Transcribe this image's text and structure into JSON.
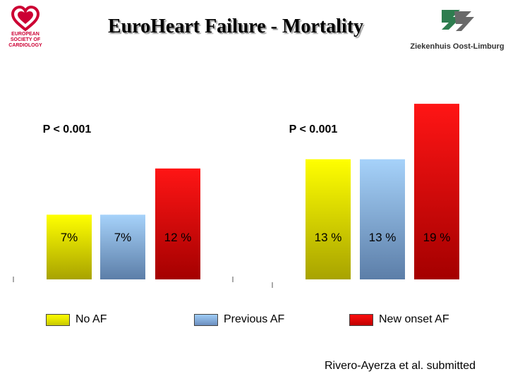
{
  "title": "Euro​Heart Failure - Mortality",
  "logos": {
    "left_lines": [
      "EUROPEAN",
      "SOCIETY OF",
      "CARDIOLOGY"
    ],
    "right_text": "Ziekenhuis Oost-Limburg"
  },
  "colors": {
    "no_af": "#ffff00",
    "previous_af": "#9fcdf7",
    "new_onset_af": "#ff1010"
  },
  "legend": [
    "No AF",
    "Previous AF",
    "New onset AF"
  ],
  "citation": "Rivero-Ayerza et al. submitted",
  "chart_data": {
    "type": "bar",
    "series": [
      {
        "name": "No AF",
        "values": [
          7,
          13
        ]
      },
      {
        "name": "Previous AF",
        "values": [
          7,
          13
        ]
      },
      {
        "name": "New onset AF",
        "values": [
          12,
          19
        ]
      }
    ],
    "data_labels": [
      [
        "7%",
        "7%",
        "12 %"
      ],
      [
        "13 %",
        "13 %",
        "19 %"
      ]
    ],
    "p_values": [
      "P < 0.001",
      "P < 0.001"
    ],
    "legend_position": "bottom"
  }
}
